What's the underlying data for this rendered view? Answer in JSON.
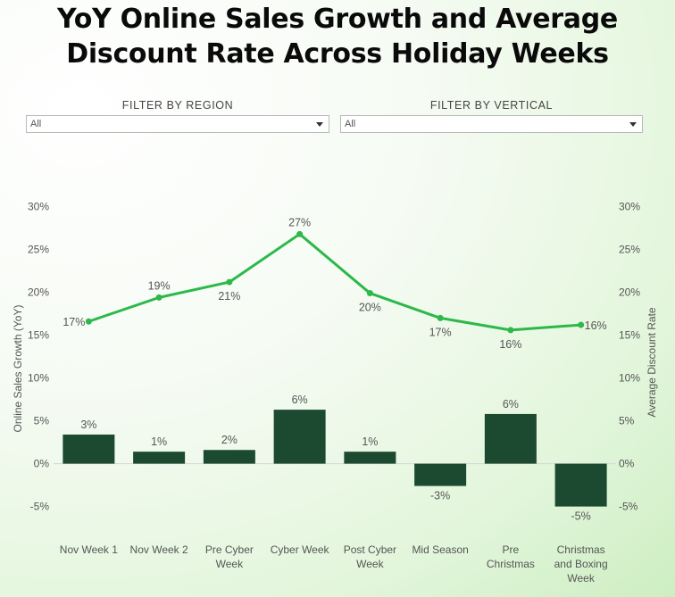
{
  "title_line1": "YoY Online Sales Growth and Average",
  "title_line2": "Discount Rate Across Holiday Weeks",
  "filters": [
    {
      "label": "FILTER BY REGION",
      "value": "All"
    },
    {
      "label": "FILTER BY VERTICAL",
      "value": "All"
    }
  ],
  "colors": {
    "line": "#2db84a",
    "bar": "#1c4a30",
    "text": "#555555"
  },
  "chart_data": {
    "type": "bar",
    "title": "YoY Online Sales Growth and Average Discount Rate Across Holiday Weeks",
    "categories": [
      [
        "Nov Week 1"
      ],
      [
        "Nov Week 2"
      ],
      [
        "Pre Cyber",
        "Week"
      ],
      [
        "Cyber Week"
      ],
      [
        "Post Cyber",
        "Week"
      ],
      [
        "Mid Season"
      ],
      [
        "Pre",
        "Christmas"
      ],
      [
        "Christmas",
        "and Boxing",
        "Week"
      ]
    ],
    "ylabel": "Online Sales Growth (YoY)",
    "y2label": "Average Discount Rate",
    "ylim": [
      -6.5,
      31
    ],
    "yticks": [
      30,
      25,
      20,
      15,
      10,
      5,
      0,
      -5
    ],
    "ytick_labels": [
      "30%",
      "25%",
      "20%",
      "15%",
      "10%",
      "5%",
      "0%",
      "-5%"
    ],
    "series": [
      {
        "name": "Online Sales Growth (YoY)",
        "type": "bar",
        "values": [
          3.4,
          1.4,
          1.6,
          6.3,
          1.4,
          -2.6,
          5.8,
          -5.0
        ],
        "labels": [
          "3%",
          "1%",
          "2%",
          "6%",
          "1%",
          "-3%",
          "6%",
          "-5%"
        ]
      },
      {
        "name": "Average Discount Rate",
        "type": "line",
        "values": [
          16.6,
          19.4,
          21.2,
          26.8,
          19.9,
          17.0,
          15.6,
          16.2
        ],
        "labels": [
          "17%",
          "19%",
          "21%",
          "27%",
          "20%",
          "17%",
          "16%",
          "16%"
        ],
        "label_position": [
          "left",
          "above",
          "below",
          "above",
          "below",
          "below",
          "below",
          "right"
        ]
      }
    ]
  }
}
